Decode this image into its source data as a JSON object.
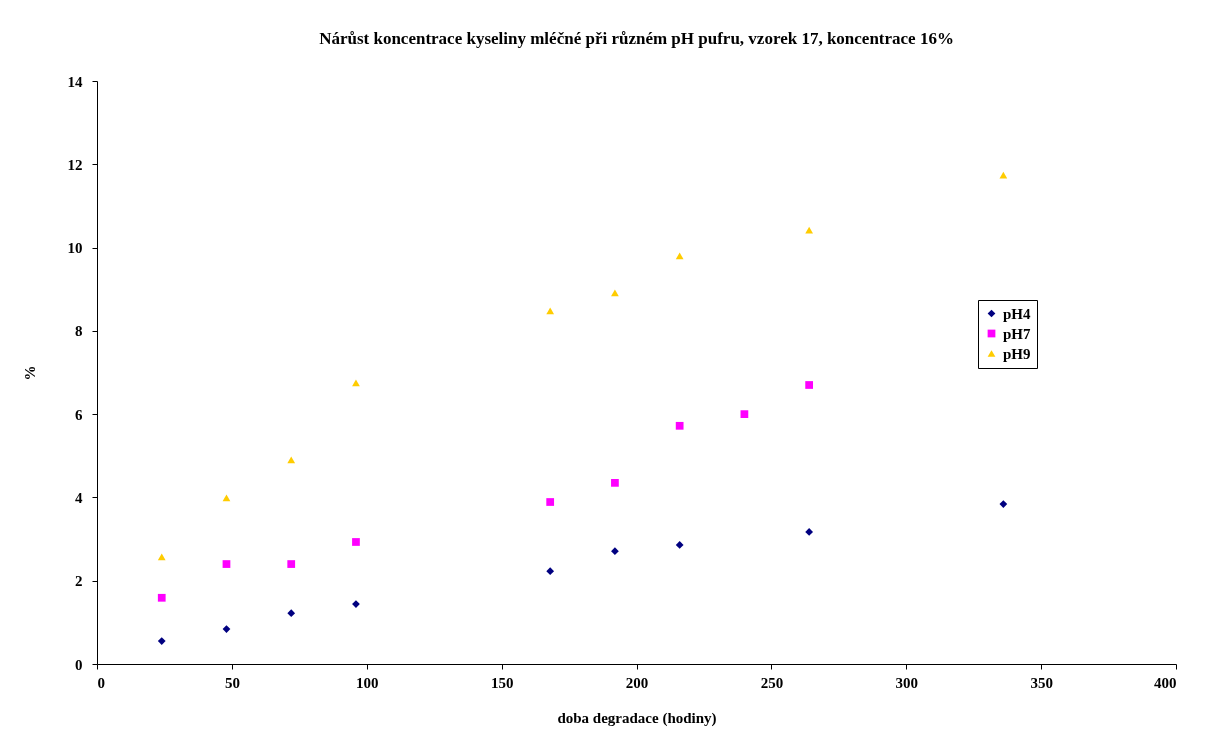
{
  "chart_data": {
    "type": "scatter",
    "title": "Nárůst koncentrace kyseliny mléčné při různém pH pufru, vzorek 17, koncentrace 16%",
    "xlabel": "doba degradace (hodiny)",
    "ylabel": "%",
    "xlim": [
      0,
      400
    ],
    "xticks": [
      0,
      50,
      100,
      150,
      200,
      250,
      300,
      350,
      400
    ],
    "ylim": [
      0,
      14
    ],
    "yticks": [
      0,
      2,
      4,
      6,
      8,
      10,
      12,
      14
    ],
    "legend": "right",
    "series": [
      {
        "name": "pH4",
        "color": "#000080",
        "marker": "diamond",
        "x": [
          24,
          48,
          72,
          96,
          168,
          192,
          216,
          264,
          336
        ],
        "values": [
          0.55,
          0.84,
          1.22,
          1.44,
          2.23,
          2.71,
          2.86,
          3.17,
          3.84
        ]
      },
      {
        "name": "pH7",
        "color": "#ff00ff",
        "marker": "square",
        "x": [
          24,
          48,
          72,
          96,
          168,
          192,
          216,
          240,
          264
        ],
        "values": [
          1.59,
          2.4,
          2.4,
          2.93,
          3.89,
          4.35,
          5.72,
          6.0,
          6.7
        ]
      },
      {
        "name": "pH9",
        "color": "#ffcc00",
        "marker": "triangle",
        "x": [
          24,
          48,
          72,
          96,
          168,
          192,
          216,
          264,
          336
        ],
        "values": [
          2.57,
          3.99,
          4.9,
          6.75,
          8.48,
          8.91,
          9.8,
          10.42,
          11.74
        ]
      }
    ]
  }
}
